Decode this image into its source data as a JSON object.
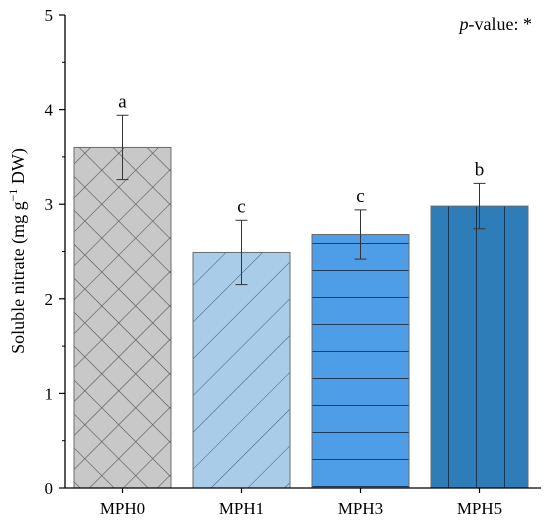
{
  "chart_data": {
    "type": "bar",
    "title": "",
    "xlabel": "",
    "ylabel": {
      "prefix": "Soluble nitrate (mg g",
      "superscript": "−1",
      "suffix": " DW)"
    },
    "ylim": [
      0,
      5
    ],
    "yticks": [
      "0",
      "1",
      "2",
      "3",
      "4",
      "5"
    ],
    "categories": [
      "MPH0",
      "MPH1",
      "MPH3",
      "MPH5"
    ],
    "values": [
      3.6,
      2.49,
      2.68,
      2.98
    ],
    "errors": [
      0.34,
      0.34,
      0.26,
      0.24
    ],
    "letters": [
      "a",
      "c",
      "c",
      "b"
    ],
    "colors": [
      "#c8c8c8",
      "#a9cde8",
      "#4d9ee6",
      "#2f7db8"
    ],
    "patterns": [
      "crosshatch",
      "diagonal",
      "horizontal",
      "vertical"
    ],
    "annotation": {
      "italic": "p",
      "text": "-value: *"
    },
    "grid": false,
    "legend": "none"
  }
}
